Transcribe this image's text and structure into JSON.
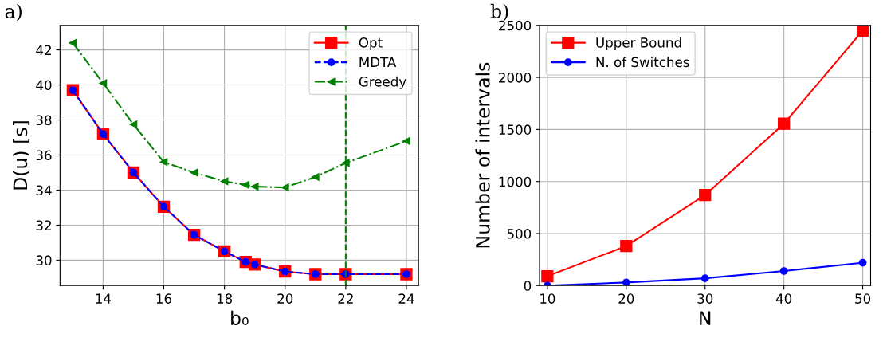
{
  "chart_data": [
    {
      "type": "line",
      "xlabel": "b₀",
      "ylabel": "D(u) [s]",
      "annotations": [
        "a)"
      ],
      "x": [
        13,
        14,
        15,
        16,
        17,
        18,
        18.7,
        19,
        20,
        21,
        22,
        24
      ],
      "series": [
        {
          "name": "Opt",
          "color": "#ff0000",
          "marker": "square",
          "line_style": "solid",
          "values": [
            39.7,
            37.2,
            35.0,
            33.05,
            31.45,
            30.5,
            29.9,
            29.75,
            29.35,
            29.2,
            29.2,
            29.2
          ]
        },
        {
          "name": "MDTA",
          "color": "#0000ff",
          "marker": "circle",
          "line_style": "dashed",
          "values": [
            39.7,
            37.2,
            35.0,
            33.05,
            31.45,
            30.5,
            29.9,
            29.75,
            29.35,
            29.2,
            29.2,
            29.2
          ]
        },
        {
          "name": "Greedy",
          "color": "#008000",
          "marker": "triangle",
          "line_style": "dashdot",
          "values": [
            42.4,
            40.1,
            37.75,
            35.6,
            35.0,
            34.5,
            34.3,
            34.2,
            34.15,
            34.75,
            35.55,
            36.8
          ]
        }
      ],
      "ref_lines": [
        {
          "axis": "x",
          "value": 22,
          "color": "#008000",
          "line_style": "dashed"
        }
      ],
      "xlim": [
        12.58,
        24.4
      ],
      "ylim": [
        28.55,
        43.4
      ],
      "xticks": [
        14,
        16,
        18,
        20,
        22,
        24
      ],
      "yticks": [
        30,
        32,
        34,
        36,
        38,
        40,
        42
      ],
      "grid": true,
      "legend": "top right"
    },
    {
      "type": "line",
      "xlabel": "N",
      "ylabel": "Number of intervals",
      "annotations": [
        "b)"
      ],
      "x": [
        10,
        20,
        30,
        40,
        50
      ],
      "series": [
        {
          "name": "Upper Bound",
          "color": "#ff0000",
          "marker": "square",
          "line_style": "solid",
          "values": [
            90,
            380,
            870,
            1555,
            2450
          ]
        },
        {
          "name": "N. of Switches",
          "color": "#0000ff",
          "marker": "circle",
          "line_style": "solid",
          "values": [
            0,
            30,
            70,
            140,
            220
          ]
        }
      ],
      "xlim": [
        9,
        51
      ],
      "ylim": [
        0,
        2500
      ],
      "xticks": [
        10,
        20,
        30,
        40,
        50
      ],
      "yticks": [
        0,
        500,
        1000,
        1500,
        2000,
        2500
      ],
      "grid": true,
      "legend": "top left"
    }
  ]
}
